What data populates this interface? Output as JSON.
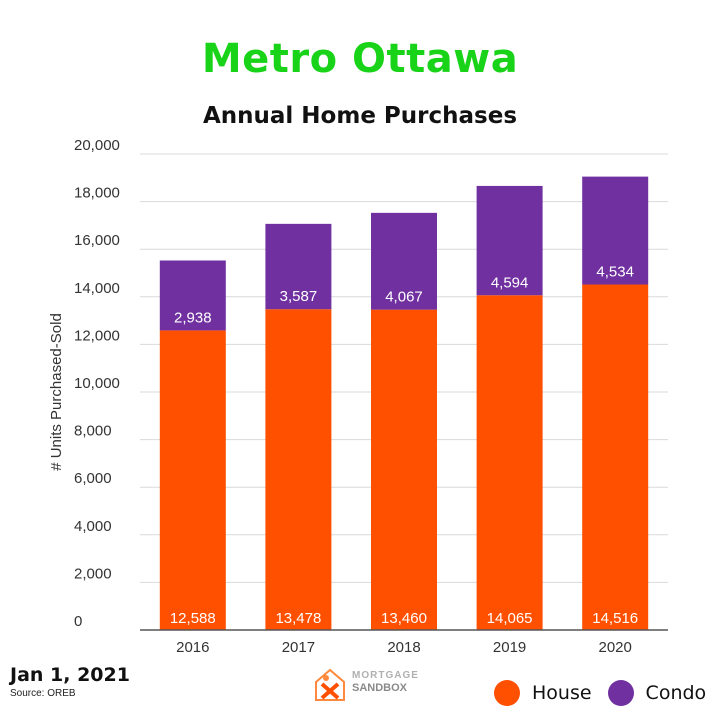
{
  "title": "Metro Ottawa",
  "chart_data": {
    "type": "bar",
    "stacked": true,
    "subtitle": "Annual Home Purchases",
    "categories": [
      "2016",
      "2017",
      "2018",
      "2019",
      "2020"
    ],
    "series": [
      {
        "name": "House",
        "values": [
          12588,
          13478,
          13460,
          14065,
          14516
        ],
        "labels": [
          "12,588",
          "13,478",
          "13,460",
          "14,065",
          "14,516"
        ],
        "color": "#ff5000"
      },
      {
        "name": "Condo",
        "values": [
          2938,
          3587,
          4067,
          4594,
          4534
        ],
        "labels": [
          "2,938",
          "3,587",
          "4,067",
          "4,594",
          "4,534"
        ],
        "color": "#7030a0"
      }
    ],
    "ylabel": "# Units Purchased-Sold",
    "ylim": [
      0,
      20000
    ],
    "yticks": [
      0,
      2000,
      4000,
      6000,
      8000,
      10000,
      12000,
      14000,
      16000,
      18000,
      20000
    ],
    "ytick_labels": [
      "0",
      "2,000",
      "4,000",
      "6,000",
      "8,000",
      "10,000",
      "12,000",
      "14,000",
      "16,000",
      "18,000",
      "20,000"
    ],
    "grid": true,
    "legend_position": "bottom-right"
  },
  "footer": {
    "date": "Jan 1, 2021",
    "source": "Source: OREB"
  },
  "logo": {
    "line1": "MORTGAGE",
    "line2": "SANDBOX"
  },
  "legend": {
    "house_label": "House",
    "condo_label": "Condo",
    "house_color": "#ff5000",
    "condo_color": "#7030a0"
  }
}
